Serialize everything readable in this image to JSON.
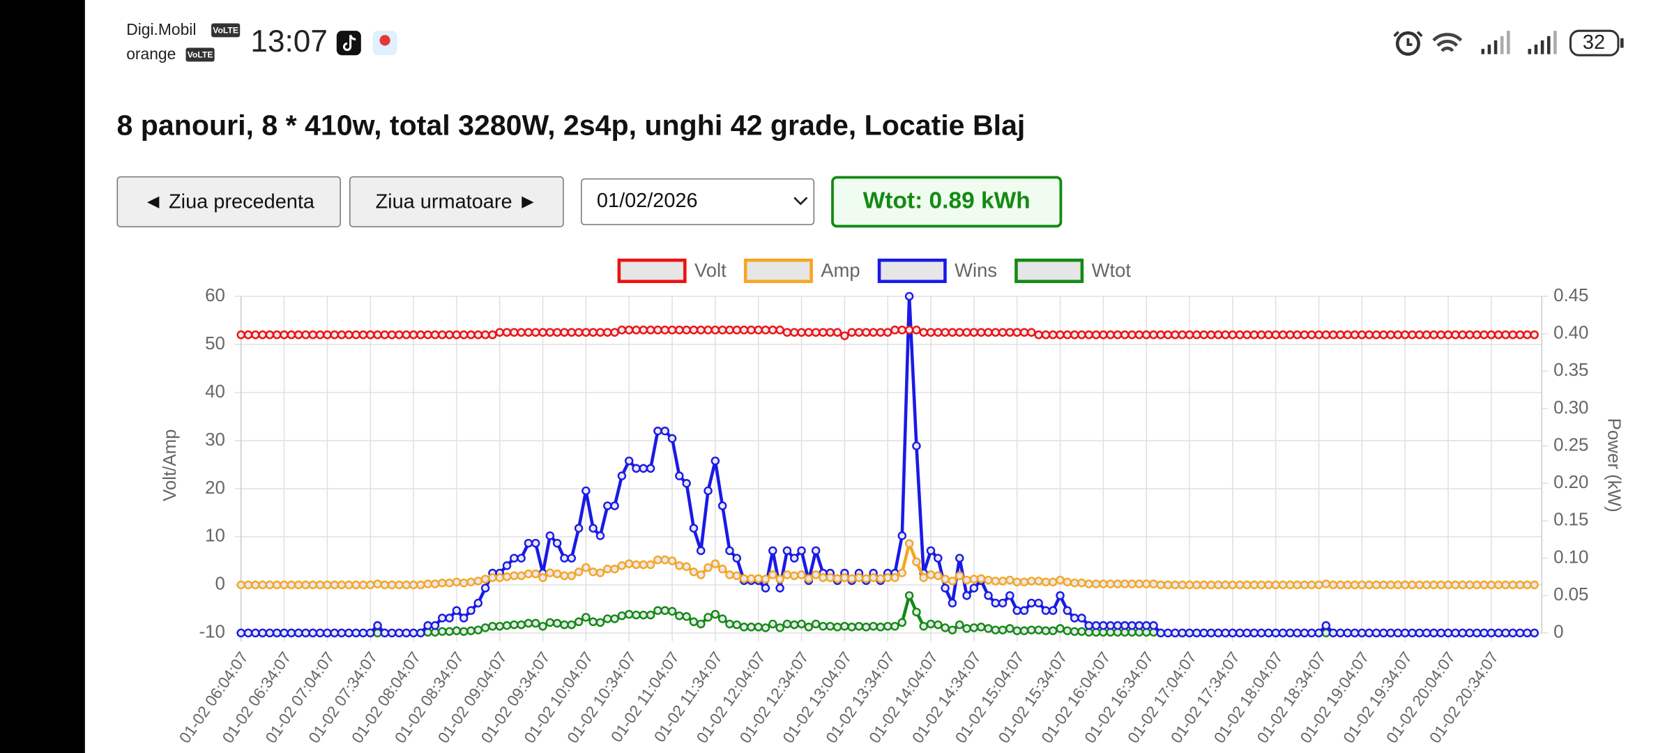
{
  "status_bar": {
    "carrier1": "Digi.Mobil",
    "carrier2": "orange",
    "volte": "VoLTE",
    "time": "13:07",
    "battery": "32"
  },
  "header": {
    "title": "8 panouri, 8 * 410w, total 3280W, 2s4p, unghi 42 grade, Locatie Blaj"
  },
  "controls": {
    "prev": "◄ Ziua precedenta",
    "next": "Ziua urmatoare ►",
    "date": "01/02/2026",
    "total": "Wtot: 0.89 kWh"
  },
  "chart_data": {
    "type": "line",
    "ylabel": "Volt/Amp",
    "y2label": "Power (kW)",
    "grid": true,
    "legend": "top",
    "ylim": [
      -10,
      60
    ],
    "yticks": [
      -10,
      0,
      10,
      20,
      30,
      40,
      50,
      60
    ],
    "y2lim": [
      0,
      0.45
    ],
    "y2ticks": [
      0,
      0.05,
      {
        "value": 0.1,
        "label": "0.10"
      },
      0.15,
      {
        "value": 0.2,
        "label": "0.20"
      },
      0.25,
      {
        "value": 0.3,
        "label": "0.30"
      },
      0.35,
      {
        "value": 0.4,
        "label": "0.40"
      },
      0.45
    ],
    "categories": [
      "01-02 06:04:07",
      null,
      null,
      null,
      null,
      null,
      "01-02 06:34:07",
      null,
      null,
      null,
      null,
      null,
      "01-02 07:04:07",
      null,
      null,
      null,
      null,
      null,
      "01-02 07:34:07",
      null,
      null,
      null,
      null,
      null,
      "01-02 08:04:07",
      null,
      null,
      null,
      null,
      null,
      "01-02 08:34:07",
      null,
      null,
      null,
      null,
      null,
      "01-02 09:04:07",
      null,
      null,
      null,
      null,
      null,
      "01-02 09:34:07",
      null,
      null,
      null,
      null,
      null,
      "01-02 10:04:07",
      null,
      null,
      null,
      null,
      null,
      "01-02 10:34:07",
      null,
      null,
      null,
      null,
      null,
      "01-02 11:04:07",
      null,
      null,
      null,
      null,
      null,
      "01-02 11:34:07",
      null,
      null,
      null,
      null,
      null,
      "01-02 12:04:07",
      null,
      null,
      null,
      null,
      null,
      "01-02 12:34:07",
      null,
      null,
      null,
      null,
      null,
      "01-02 13:04:07",
      null,
      null,
      null,
      null,
      null,
      "01-02 13:34:07",
      null,
      null,
      null,
      null,
      null,
      "01-02 14:04:07",
      null,
      null,
      null,
      null,
      null,
      "01-02 14:34:07",
      null,
      null,
      null,
      null,
      null,
      "01-02 15:04:07",
      null,
      null,
      null,
      null,
      null,
      "01-02 15:34:07",
      null,
      null,
      null,
      null,
      null,
      "01-02 16:04:07",
      null,
      null,
      null,
      null,
      null,
      "01-02 16:34:07",
      null,
      null,
      null,
      null,
      null,
      "01-02 17:04:07",
      null,
      null,
      null,
      null,
      null,
      "01-02 17:34:07",
      null,
      null,
      null,
      null,
      null,
      "01-02 18:04:07",
      null,
      null,
      null,
      null,
      null,
      "01-02 18:34:07",
      null,
      null,
      null,
      null,
      null,
      "01-02 19:04:07",
      null,
      null,
      null,
      null,
      null,
      "01-02 19:34:07",
      null,
      null,
      null,
      null,
      null,
      "01-02 20:04:07",
      null,
      null,
      null,
      null,
      null,
      "01-02 20:34:07",
      null,
      null,
      null,
      null,
      null,
      null
    ],
    "series": [
      {
        "name": "Volt",
        "color": "#ee1111",
        "axis": "y",
        "values": [
          52,
          52,
          52,
          52,
          52,
          52,
          52,
          52,
          52,
          52,
          52,
          52,
          52,
          52,
          52,
          52,
          52,
          52,
          52,
          52,
          52,
          52,
          52,
          52,
          52,
          52,
          52,
          52,
          52,
          52,
          52,
          52,
          52,
          52,
          52,
          52,
          52.5,
          52.5,
          52.5,
          52.5,
          52.5,
          52.5,
          52.5,
          52.5,
          52.5,
          52.5,
          52.5,
          52.5,
          52.5,
          52.5,
          52.5,
          52.5,
          52.5,
          53,
          53,
          53,
          53,
          53,
          53,
          53,
          53,
          53,
          53,
          53,
          53,
          53,
          53,
          53,
          53,
          53,
          53,
          53,
          53,
          53,
          53,
          53,
          52.5,
          52.5,
          52.5,
          52.5,
          52.5,
          52.5,
          52.5,
          52.5,
          51.8,
          52.5,
          52.5,
          52.5,
          52.5,
          52.5,
          52.5,
          53,
          53,
          53,
          53,
          52.5,
          52.5,
          52.5,
          52.5,
          52.5,
          52.5,
          52.5,
          52.5,
          52.5,
          52.5,
          52.5,
          52.5,
          52.5,
          52.5,
          52.5,
          52.5,
          52,
          52,
          52,
          52,
          52,
          52,
          52,
          52,
          52,
          52,
          52,
          52,
          52,
          52,
          52,
          52,
          52,
          52,
          52,
          52,
          52,
          52,
          52,
          52,
          52,
          52,
          52,
          52,
          52,
          52,
          52,
          52,
          52,
          52,
          52,
          52,
          52,
          52,
          52,
          52,
          52,
          52,
          52,
          52,
          52,
          52,
          52,
          52,
          52,
          52,
          52,
          52,
          52,
          52,
          52,
          52,
          52,
          52,
          52,
          52,
          52,
          52,
          52,
          52,
          52,
          52,
          52,
          52,
          52,
          52
        ]
      },
      {
        "name": "Amp",
        "color": "#f5a623",
        "axis": "y",
        "values": [
          0,
          0,
          0,
          0,
          0,
          0,
          0,
          0,
          0,
          0,
          0,
          0,
          0,
          0,
          0,
          0,
          0,
          0,
          0,
          0.2,
          0,
          0,
          0,
          0,
          0,
          0,
          0.2,
          0.2,
          0.4,
          0.4,
          0.6,
          0.4,
          0.6,
          0.8,
          1.2,
          1.5,
          1.5,
          1.7,
          1.9,
          1.9,
          2.3,
          2.3,
          1.5,
          2.5,
          2.3,
          1.9,
          1.9,
          2.7,
          3.6,
          2.7,
          2.5,
          3.3,
          3.3,
          4,
          4.4,
          4.2,
          4.2,
          4.2,
          5.2,
          5.2,
          5,
          4,
          3.8,
          2.7,
          2.1,
          3.6,
          4.4,
          3.3,
          2.1,
          1.9,
          1.3,
          1.3,
          1.3,
          1.2,
          2.1,
          1.2,
          2.1,
          1.9,
          2.1,
          1.3,
          2.1,
          1.5,
          1.5,
          1.3,
          1.5,
          1.3,
          1.5,
          1.3,
          1.5,
          1.3,
          1.5,
          1.5,
          2.5,
          8.6,
          4.8,
          1.5,
          2.1,
          1.9,
          1.2,
          0.8,
          1.9,
          1,
          1.2,
          1.3,
          1,
          0.8,
          0.8,
          1,
          0.6,
          0.6,
          0.8,
          0.8,
          0.6,
          0.6,
          1,
          0.6,
          0.4,
          0.4,
          0.2,
          0.2,
          0.2,
          0.2,
          0.2,
          0.2,
          0.2,
          0.2,
          0.2,
          0.2,
          0,
          0,
          0,
          0,
          0,
          0,
          0,
          0,
          0,
          0,
          0,
          0,
          0,
          0,
          0,
          0,
          0,
          0,
          0,
          0,
          0,
          0,
          0,
          0.2,
          0,
          0,
          0,
          0,
          0,
          0,
          0,
          0,
          0,
          0,
          0,
          0,
          0,
          0,
          0,
          0,
          0,
          0,
          0,
          0,
          0,
          0,
          0,
          0,
          0,
          0,
          0,
          0,
          0
        ]
      },
      {
        "name": "Wins",
        "color": "#1a1ae6",
        "axis": "y2",
        "values": [
          0,
          0,
          0,
          0,
          0,
          0,
          0,
          0,
          0,
          0,
          0,
          0,
          0,
          0,
          0,
          0,
          0,
          0,
          0,
          0.01,
          0,
          0,
          0,
          0,
          0,
          0,
          0.01,
          0.01,
          0.02,
          0.02,
          0.03,
          0.02,
          0.03,
          0.04,
          0.06,
          0.08,
          0.08,
          0.09,
          0.1,
          0.1,
          0.12,
          0.12,
          0.08,
          0.13,
          0.12,
          0.1,
          0.1,
          0.14,
          0.19,
          0.14,
          0.13,
          0.17,
          0.17,
          0.21,
          0.23,
          0.22,
          0.22,
          0.22,
          0.27,
          0.27,
          0.26,
          0.21,
          0.2,
          0.14,
          0.11,
          0.19,
          0.23,
          0.17,
          0.11,
          0.1,
          0.07,
          0.07,
          0.07,
          0.06,
          0.11,
          0.06,
          0.11,
          0.1,
          0.11,
          0.07,
          0.11,
          0.08,
          0.08,
          0.07,
          0.08,
          0.07,
          0.08,
          0.07,
          0.08,
          0.07,
          0.08,
          0.08,
          0.13,
          0.45,
          0.25,
          0.08,
          0.11,
          0.1,
          0.06,
          0.04,
          0.1,
          0.05,
          0.06,
          0.07,
          0.05,
          0.04,
          0.04,
          0.05,
          0.03,
          0.03,
          0.04,
          0.04,
          0.03,
          0.03,
          0.05,
          0.03,
          0.02,
          0.02,
          0.01,
          0.01,
          0.01,
          0.01,
          0.01,
          0.01,
          0.01,
          0.01,
          0.01,
          0.01,
          0,
          0,
          0,
          0,
          0,
          0,
          0,
          0,
          0,
          0,
          0,
          0,
          0,
          0,
          0,
          0,
          0,
          0,
          0,
          0,
          0,
          0,
          0,
          0.01,
          0,
          0,
          0,
          0,
          0,
          0,
          0,
          0,
          0,
          0,
          0,
          0,
          0,
          0,
          0,
          0,
          0,
          0,
          0,
          0,
          0,
          0,
          0,
          0,
          0,
          0,
          0,
          0,
          0
        ]
      },
      {
        "name": "Wtot",
        "color": "#138a13",
        "axis": "y2",
        "values": [
          0,
          0,
          0,
          0,
          0,
          0,
          0,
          0,
          0,
          0,
          0,
          0,
          0,
          0,
          0,
          0,
          0,
          0,
          0,
          0,
          0,
          0,
          0,
          0,
          0,
          0,
          0.001,
          0.001,
          0.002,
          0.002,
          0.003,
          0.002,
          0.003,
          0.004,
          0.007,
          0.009,
          0.009,
          0.01,
          0.011,
          0.011,
          0.013,
          0.013,
          0.009,
          0.014,
          0.013,
          0.011,
          0.011,
          0.015,
          0.021,
          0.015,
          0.014,
          0.019,
          0.019,
          0.023,
          0.025,
          0.024,
          0.024,
          0.024,
          0.03,
          0.03,
          0.029,
          0.023,
          0.022,
          0.015,
          0.012,
          0.021,
          0.025,
          0.019,
          0.012,
          0.011,
          0.008,
          0.008,
          0.008,
          0.007,
          0.012,
          0.007,
          0.012,
          0.011,
          0.012,
          0.008,
          0.012,
          0.009,
          0.009,
          0.008,
          0.009,
          0.008,
          0.009,
          0.008,
          0.009,
          0.008,
          0.009,
          0.009,
          0.014,
          0.05,
          0.028,
          0.009,
          0.012,
          0.011,
          0.007,
          0.004,
          0.011,
          0.006,
          0.007,
          0.008,
          0.006,
          0.004,
          0.004,
          0.006,
          0.003,
          0.003,
          0.004,
          0.004,
          0.003,
          0.003,
          0.006,
          0.003,
          0.002,
          0.002,
          0.001,
          0.001,
          0.001,
          0.001,
          0.001,
          0.001,
          0.001,
          0.001,
          0.001,
          0.001,
          0,
          0,
          0,
          0,
          0,
          0,
          0,
          0,
          0,
          0,
          0,
          0,
          0,
          0,
          0,
          0,
          0,
          0,
          0,
          0,
          0,
          0,
          0,
          0,
          0,
          0,
          0,
          0,
          0,
          0,
          0,
          0,
          0,
          0,
          0,
          0,
          0,
          0,
          0,
          0,
          0,
          0,
          0,
          0,
          0,
          0,
          0,
          0,
          0,
          0,
          0,
          0,
          0
        ]
      }
    ]
  }
}
